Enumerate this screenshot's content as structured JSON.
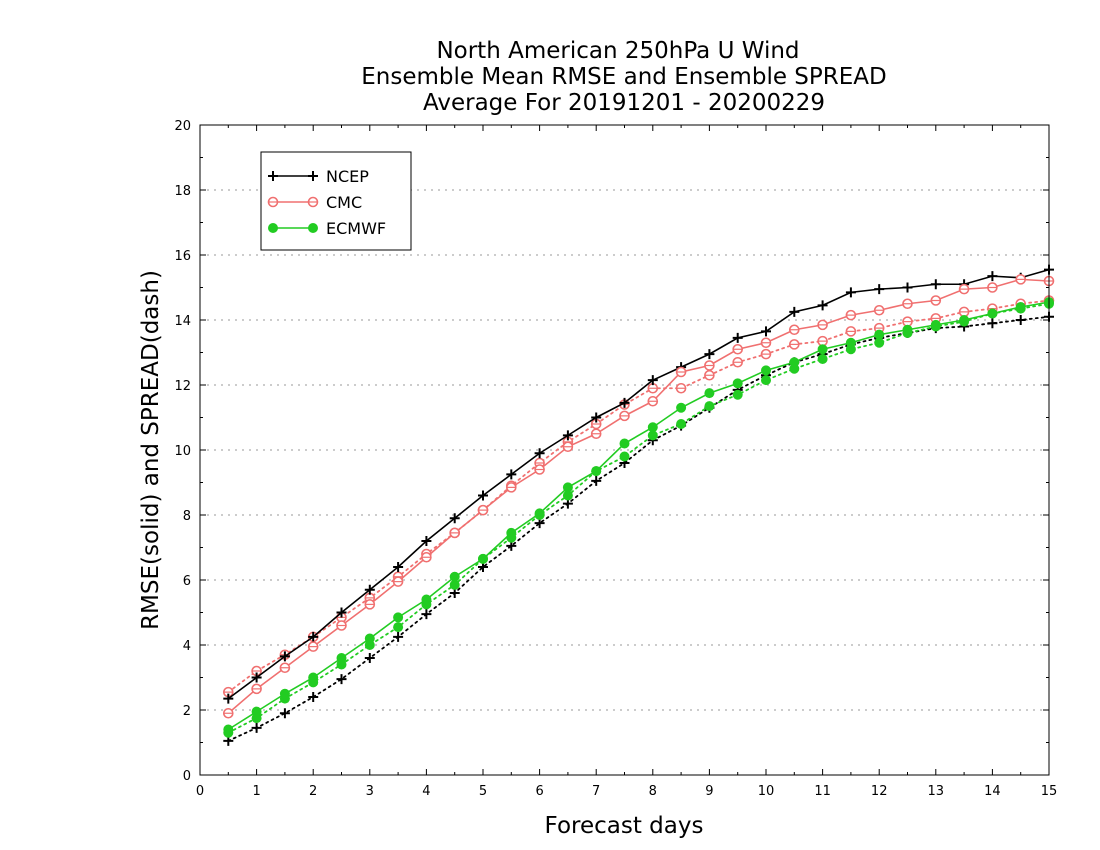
{
  "chart_data": {
    "type": "line",
    "title_lines": [
      "North American 250hPa U Wind",
      "Ensemble Mean RMSE and Ensemble SPREAD",
      "Average For 20191201 - 20200229"
    ],
    "xlabel": "Forecast days",
    "ylabel": "RMSE(solid) and SPREAD(dash)",
    "xlim": [
      0,
      15
    ],
    "ylim": [
      0,
      20
    ],
    "x_ticks": [
      "0",
      "1",
      "2",
      "3",
      "4",
      "5",
      "6",
      "7",
      "8",
      "9",
      "10",
      "11",
      "12",
      "13",
      "14",
      "15"
    ],
    "y_ticks": [
      "0",
      "2",
      "4",
      "6",
      "8",
      "10",
      "12",
      "14",
      "16",
      "18",
      "20"
    ],
    "grid": "horizontal-dotted",
    "legend_position": "top-left",
    "x": [
      0.5,
      1,
      1.5,
      2,
      2.5,
      3,
      3.5,
      4,
      4.5,
      5,
      5.5,
      6,
      6.5,
      7,
      7.5,
      8,
      8.5,
      9,
      9.5,
      10,
      10.5,
      11,
      11.5,
      12,
      12.5,
      13,
      13.5,
      14,
      14.5,
      15
    ],
    "series": [
      {
        "name": "NCEP",
        "color": "#000000",
        "marker": "plus",
        "rmse": [
          2.35,
          3.0,
          3.65,
          4.25,
          5.0,
          5.7,
          6.4,
          7.2,
          7.9,
          8.6,
          9.25,
          9.9,
          10.45,
          11.0,
          11.45,
          12.15,
          12.55,
          12.95,
          13.45,
          13.65,
          14.25,
          14.45,
          14.85,
          14.95,
          15.0,
          15.1,
          15.1,
          15.35,
          15.3,
          15.55
        ],
        "spread": [
          1.05,
          1.45,
          1.9,
          2.4,
          2.95,
          3.6,
          4.25,
          4.95,
          5.6,
          6.4,
          7.05,
          7.75,
          8.35,
          9.05,
          9.6,
          10.3,
          10.75,
          11.3,
          11.85,
          12.3,
          12.7,
          12.95,
          13.25,
          13.45,
          13.6,
          13.75,
          13.8,
          13.9,
          14.0,
          14.1
        ]
      },
      {
        "name": "CMC",
        "color": "#f07070",
        "marker": "open-circle",
        "rmse": [
          1.9,
          2.65,
          3.3,
          3.95,
          4.6,
          5.25,
          5.95,
          6.7,
          7.45,
          8.15,
          8.85,
          9.4,
          10.1,
          10.5,
          11.05,
          11.5,
          12.4,
          12.6,
          13.1,
          13.3,
          13.7,
          13.85,
          14.15,
          14.3,
          14.5,
          14.6,
          14.95,
          15.0,
          15.25,
          15.2
        ],
        "spread": [
          2.55,
          3.2,
          3.7,
          4.25,
          4.85,
          5.45,
          6.1,
          6.8,
          7.45,
          8.15,
          8.9,
          9.6,
          10.25,
          10.8,
          11.4,
          11.9,
          11.9,
          12.3,
          12.7,
          12.95,
          13.25,
          13.35,
          13.65,
          13.75,
          13.95,
          14.05,
          14.25,
          14.35,
          14.5,
          14.6
        ]
      },
      {
        "name": "ECMWF",
        "color": "#22cc22",
        "marker": "filled-circle",
        "rmse": [
          1.4,
          1.95,
          2.5,
          3.0,
          3.6,
          4.2,
          4.85,
          5.4,
          6.1,
          6.65,
          7.45,
          8.05,
          8.85,
          9.35,
          10.2,
          10.7,
          11.3,
          11.75,
          12.05,
          12.45,
          12.7,
          13.1,
          13.3,
          13.55,
          13.7,
          13.85,
          14.0,
          14.2,
          14.4,
          14.55
        ],
        "spread": [
          1.3,
          1.75,
          2.35,
          2.85,
          3.4,
          4.0,
          4.55,
          5.25,
          5.85,
          6.65,
          7.3,
          8.0,
          8.6,
          9.35,
          9.8,
          10.45,
          10.8,
          11.35,
          11.7,
          12.15,
          12.5,
          12.8,
          13.1,
          13.3,
          13.6,
          13.8,
          13.95,
          14.2,
          14.35,
          14.5
        ]
      }
    ]
  }
}
